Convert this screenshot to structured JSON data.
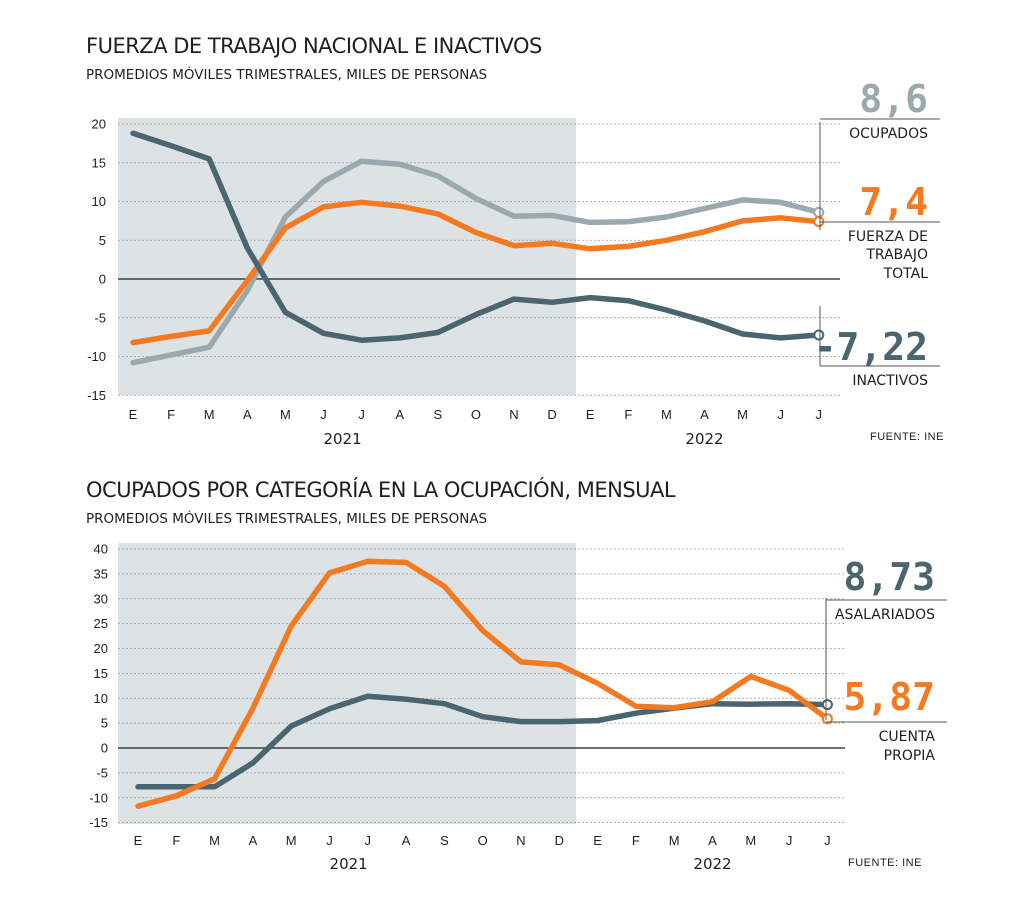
{
  "chart_data": [
    {
      "type": "line",
      "title": "FUERZA DE TRABAJO NACIONAL E INACTIVOS",
      "subtitle": "PROMEDIOS MÓVILES TRIMESTRALES, MILES DE PERSONAS",
      "x": [
        "E",
        "F",
        "M",
        "A",
        "M",
        "J",
        "J",
        "A",
        "S",
        "O",
        "N",
        "D",
        "E",
        "F",
        "M",
        "A",
        "M",
        "J",
        "J"
      ],
      "years": [
        "2021",
        "2022"
      ],
      "ylim": [
        -15,
        20
      ],
      "yticks": [
        "20",
        "15",
        "10",
        "5",
        "0",
        "-5",
        "-10",
        "-15"
      ],
      "shaded_range": "E 2021 – D 2021",
      "grid": true,
      "source": "FUENTE: INE",
      "series": [
        {
          "name": "OCUPADOS",
          "color": "#9aa9ae",
          "values": [
            -10.8,
            -9.8,
            -8.8,
            -1.5,
            8.0,
            12.6,
            15.2,
            14.8,
            13.3,
            10.4,
            8.1,
            8.2,
            7.3,
            7.4,
            8.0,
            9.1,
            10.2,
            9.9,
            8.6
          ]
        },
        {
          "name": "FUERZA DE TRABAJO TOTAL",
          "color": "#f47a22",
          "values": [
            -8.2,
            -7.4,
            -6.7,
            -0.2,
            6.6,
            9.3,
            9.9,
            9.4,
            8.4,
            6.0,
            4.3,
            4.6,
            3.9,
            4.2,
            5.0,
            6.1,
            7.5,
            7.9,
            7.4
          ]
        },
        {
          "name": "INACTIVOS",
          "color": "#4a6470",
          "values": [
            18.8,
            17.2,
            15.5,
            4.0,
            -4.3,
            -7.0,
            -7.9,
            -7.6,
            -6.9,
            -4.6,
            -2.6,
            -3.0,
            -2.4,
            -2.8,
            -4.0,
            -5.4,
            -7.1,
            -7.6,
            -7.22
          ]
        }
      ],
      "end_labels": [
        {
          "value": "8,6",
          "label": [
            "OCUPADOS"
          ],
          "color": "#9aa9ae"
        },
        {
          "value": "7,4",
          "label": [
            "FUERZA DE",
            "TRABAJO",
            "TOTAL"
          ],
          "color": "#f47a22"
        },
        {
          "value": "-7,22",
          "label": [
            "INACTIVOS"
          ],
          "color": "#4a6470"
        }
      ]
    },
    {
      "type": "line",
      "title": "OCUPADOS POR CATEGORÍA EN LA OCUPACIÓN, MENSUAL",
      "subtitle": "PROMEDIOS MÓVILES TRIMESTRALES, MILES DE PERSONAS",
      "x": [
        "E",
        "F",
        "M",
        "A",
        "M",
        "J",
        "J",
        "A",
        "S",
        "O",
        "N",
        "D",
        "E",
        "F",
        "M",
        "A",
        "M",
        "J",
        "J"
      ],
      "years": [
        "2021",
        "2022"
      ],
      "ylim": [
        -15,
        40
      ],
      "yticks": [
        "40",
        "35",
        "30",
        "25",
        "20",
        "15",
        "10",
        "5",
        "0",
        "-5",
        "-10",
        "-15"
      ],
      "shaded_range": "E 2021 – D 2021",
      "grid": true,
      "source": "FUENTE: INE",
      "series": [
        {
          "name": "ASALARIADOS",
          "color": "#4a6470",
          "values": [
            -7.8,
            -7.8,
            -7.8,
            -3.0,
            4.4,
            7.9,
            10.4,
            9.8,
            8.9,
            6.3,
            5.3,
            5.3,
            5.5,
            7.0,
            8.0,
            8.9,
            8.8,
            8.9,
            8.73
          ]
        },
        {
          "name": "CUENTA PROPIA",
          "color": "#f47a22",
          "values": [
            -11.7,
            -9.6,
            -6.2,
            8.0,
            24.5,
            35.2,
            37.5,
            37.3,
            32.5,
            23.6,
            17.3,
            16.7,
            13.0,
            8.4,
            8.1,
            9.3,
            14.4,
            11.6,
            5.87
          ]
        }
      ],
      "end_labels": [
        {
          "value": "8,73",
          "label": [
            "ASALARIADOS"
          ],
          "color": "#4a6470"
        },
        {
          "value": "5,87",
          "label": [
            "CUENTA",
            "PROPIA"
          ],
          "color": "#f47a22"
        }
      ]
    }
  ]
}
